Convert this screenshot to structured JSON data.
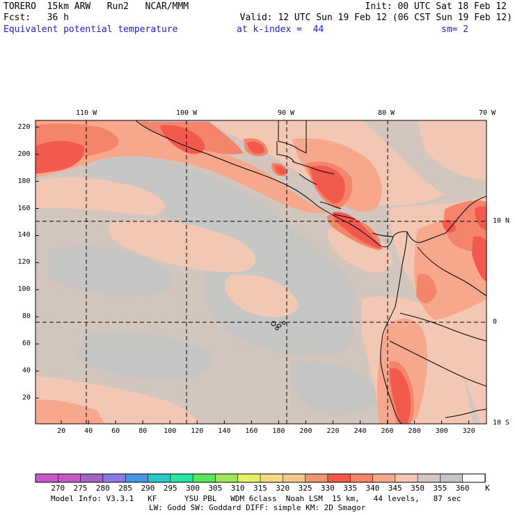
{
  "header": {
    "line1_left": "TORERO  15km ARW   Run2   NCAR/MMM",
    "line1_right": "Init: 00 UTC Sat 18 Feb 12",
    "line2_left": "Fcst:   36 h",
    "line2_right": "Valid: 12 UTC Sun 19 Feb 12 (06 CST Sun 19 Feb 12)",
    "line3_field": "Equivalent potential temperature",
    "line3_level": "at k-index =  44",
    "line3_smooth": "sm= 2"
  },
  "map": {
    "lon_labels": [
      "110 W",
      "100 W",
      "90 W",
      "80 W",
      "70 W"
    ],
    "lat_labels": [
      "10 N",
      "0",
      "10 S"
    ],
    "x_ticks": [
      "20",
      "40",
      "60",
      "80",
      "100",
      "120",
      "140",
      "160",
      "180",
      "200",
      "220",
      "240",
      "260",
      "280",
      "300",
      "320"
    ],
    "y_ticks": [
      "220",
      "200",
      "180",
      "160",
      "140",
      "120",
      "100",
      "80",
      "60",
      "40",
      "20"
    ],
    "x_range": [
      1,
      333
    ],
    "y_range": [
      1,
      225
    ],
    "grid_lon_x": [
      38,
      112,
      185,
      258,
      333
    ],
    "grid_lat_y": [
      150,
      76
    ],
    "colors": {
      "background_theta": "#d2c6be",
      "cool_patches": "#c6c6c6",
      "warm_345": "#f2c8b4",
      "warm_340": "#f6a78c",
      "warm_335": "#f4846a",
      "warm_330": "#f25a4e",
      "coastline": "#000000",
      "grid": "#000000"
    }
  },
  "colorbar": {
    "labels": [
      "270",
      "275",
      "280",
      "285",
      "290",
      "295",
      "300",
      "305",
      "310",
      "315",
      "320",
      "325",
      "330",
      "335",
      "340",
      "345",
      "350",
      "355",
      "360"
    ],
    "unit": "K",
    "colors": [
      "#c858c8",
      "#a064c8",
      "#8c78e6",
      "#4696e6",
      "#28c8c8",
      "#28e6a0",
      "#5ae65a",
      "#a0e65a",
      "#e6f064",
      "#f0dc82",
      "#f6c88c",
      "#f0966e",
      "#f25a4e",
      "#f4846a",
      "#f6a78c",
      "#f2c8b4",
      "#d2c6be",
      "#c6c6c6",
      "#ffffff"
    ]
  },
  "footer": {
    "line1": "Model Info: V3.3.1   KF      YSU PBL   WDM 6class  Noah LSM  15 km,   44 levels,   87 sec",
    "line2": "LW: Godd SW: Goddard DIFF: simple KM: 2D Smagor"
  }
}
